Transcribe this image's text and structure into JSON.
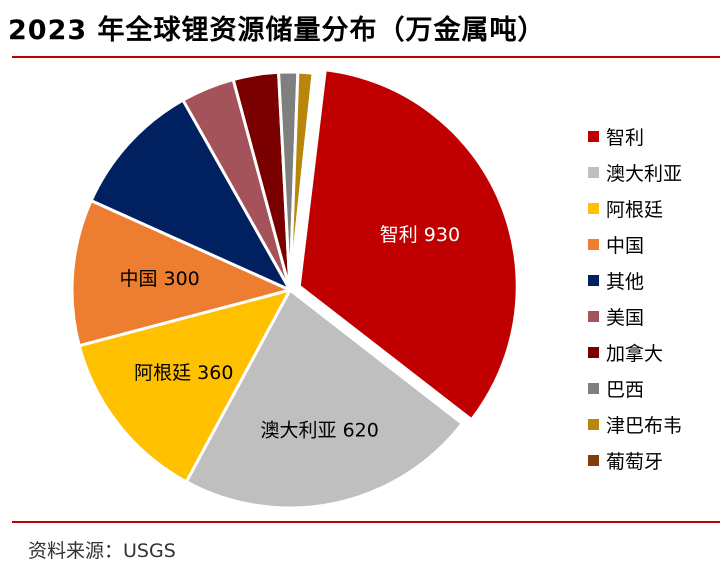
{
  "title": "2023 年全球锂资源储量分布（万金属吨）",
  "source": "资料来源：USGS",
  "chart_data": {
    "type": "pie",
    "title": "2023 年全球锂资源储量分布（万金属吨）",
    "legend_position": "right",
    "slices": [
      {
        "name": "智利",
        "value": 930,
        "color": "#c00000",
        "label": "智利 930",
        "label_color": "#ffffff"
      },
      {
        "name": "澳大利亚",
        "value": 620,
        "color": "#bfbfbf",
        "label": "澳大利亚 620",
        "label_color": "#000000"
      },
      {
        "name": "阿根廷",
        "value": 360,
        "color": "#ffc000",
        "label": "阿根廷 360",
        "label_color": "#000000"
      },
      {
        "name": "中国",
        "value": 300,
        "color": "#ed7d31",
        "label": "中国 300",
        "label_color": "#000000"
      },
      {
        "name": "其他",
        "value": 280,
        "color": "#002060",
        "label": "",
        "label_color": "#ffffff"
      },
      {
        "name": "美国",
        "value": 110,
        "color": "#a5535a",
        "label": "",
        "label_color": "#ffffff"
      },
      {
        "name": "加拿大",
        "value": 93,
        "color": "#7a0000",
        "label": "",
        "label_color": "#ffffff"
      },
      {
        "name": "巴西",
        "value": 39,
        "color": "#7f7f7f",
        "label": "",
        "label_color": "#ffffff"
      },
      {
        "name": "津巴布韦",
        "value": 31,
        "color": "#b8860b",
        "label": "",
        "label_color": "#ffffff"
      },
      {
        "name": "葡萄牙",
        "value": 6,
        "color": "#843c0c",
        "label": "",
        "label_color": "#ffffff"
      }
    ]
  }
}
